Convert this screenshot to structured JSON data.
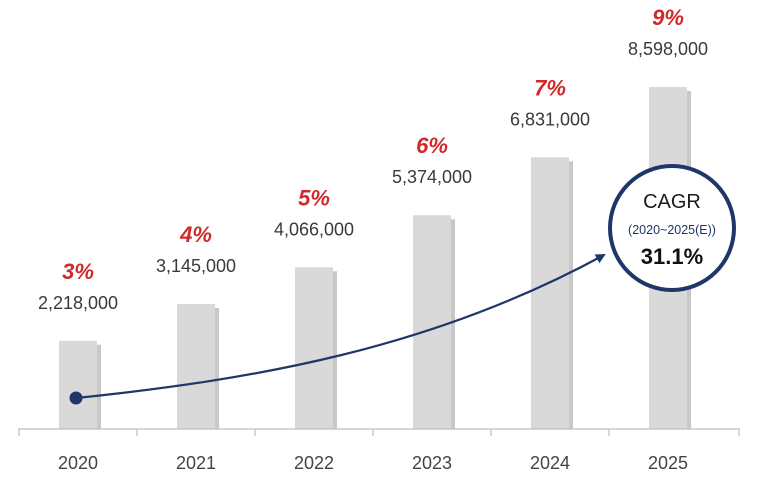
{
  "chart_data": {
    "type": "bar",
    "title": "",
    "xlabel": "",
    "ylabel": "",
    "categories": [
      "2020",
      "2021",
      "2022",
      "2023",
      "2024",
      "2025"
    ],
    "values": [
      2218000,
      3145000,
      4066000,
      5374000,
      6831000,
      8598000
    ],
    "value_labels": [
      "2,218,000",
      "3,145,000",
      "4,066,000",
      "5,374,000",
      "6,831,000",
      "8,598,000"
    ],
    "percent_labels": [
      "3%",
      "4%",
      "5%",
      "6%",
      "7%",
      "9%"
    ],
    "ylim": [
      0,
      8598000
    ],
    "grid": false,
    "legend": "none",
    "annotation": {
      "title": "CAGR",
      "period": "(2020~2025(E))",
      "value": "31.1%"
    },
    "colors": {
      "bar": "#d9d9d9",
      "percent": "#d02a2a",
      "arrow": "#1e3668",
      "axis": "#bfbfbf"
    }
  }
}
